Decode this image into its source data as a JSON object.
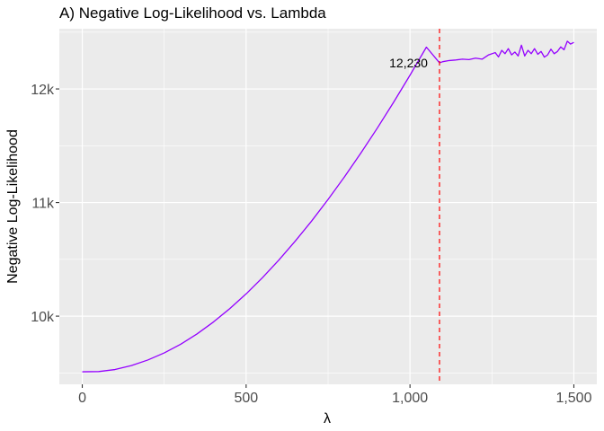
{
  "chart_data": {
    "type": "line",
    "title": "A) Negative Log-Likelihood vs. Lambda",
    "xlabel": "λ",
    "ylabel": "Negative Log-Likelihood",
    "xlim": [
      -70,
      1570
    ],
    "ylim": [
      9400,
      12530
    ],
    "x_ticks": [
      0,
      500,
      1000,
      1500
    ],
    "x_tick_labels": [
      "0",
      "500",
      "1,000",
      "1,500"
    ],
    "y_ticks": [
      10000,
      11000,
      12000
    ],
    "y_tick_labels": [
      "10k",
      "11k",
      "12k"
    ],
    "grid": true,
    "legend": "none",
    "series": [
      {
        "color": "#9400FF",
        "x": [
          0,
          50,
          100,
          150,
          200,
          250,
          300,
          350,
          400,
          450,
          500,
          550,
          600,
          650,
          700,
          750,
          800,
          850,
          900,
          950,
          1000,
          1050,
          1090,
          1100,
          1120,
          1140,
          1160,
          1180,
          1200,
          1220,
          1240,
          1260,
          1270,
          1280,
          1290,
          1300,
          1310,
          1320,
          1330,
          1340,
          1350,
          1360,
          1370,
          1380,
          1390,
          1400,
          1410,
          1420,
          1430,
          1440,
          1450,
          1460,
          1470,
          1480,
          1490,
          1500
        ],
        "y": [
          9510,
          9512,
          9530,
          9565,
          9614,
          9676,
          9752,
          9843,
          9948,
          10066,
          10196,
          10339,
          10494,
          10661,
          10838,
          11027,
          11226,
          11435,
          11654,
          11883,
          12121,
          12368,
          12230,
          12240,
          12250,
          12255,
          12262,
          12258,
          12271,
          12262,
          12300,
          12320,
          12282,
          12340,
          12310,
          12355,
          12300,
          12325,
          12290,
          12385,
          12290,
          12340,
          12310,
          12355,
          12305,
          12330,
          12280,
          12300,
          12350,
          12310,
          12330,
          12370,
          12345,
          12420,
          12395,
          12410
        ]
      }
    ],
    "reference_line": {
      "x": 1090,
      "color": "#FF0000",
      "style": "dashed"
    },
    "annotations": [
      {
        "x": 1090,
        "y": 12230,
        "text": "12,230"
      }
    ]
  }
}
